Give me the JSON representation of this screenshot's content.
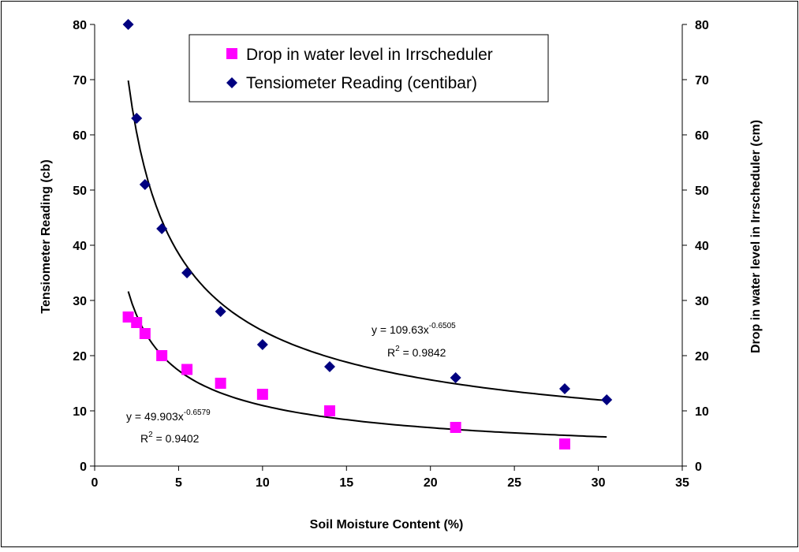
{
  "chart_data": {
    "type": "scatter",
    "xlabel": "Soil Moisture Content (%)",
    "ylabel_left": "Tensiometer Reading (cb)",
    "ylabel_right": "Drop in water level in Irrscheduler (cm)",
    "xlim": [
      0,
      35
    ],
    "ylim": [
      0,
      80
    ],
    "y2lim": [
      0,
      80
    ],
    "x_ticks": [
      0,
      5,
      10,
      15,
      20,
      25,
      30,
      35
    ],
    "y_ticks": [
      0,
      10,
      20,
      30,
      40,
      50,
      60,
      70,
      80
    ],
    "grid": false,
    "legend_position": "top-center",
    "series": [
      {
        "name": "Drop in water level in Irrscheduler",
        "marker": "square",
        "color": "#ff00ff",
        "x": [
          2,
          2.5,
          3,
          4,
          5.5,
          7.5,
          10,
          14,
          21.5,
          28
        ],
        "y": [
          27,
          26,
          24,
          20,
          17.5,
          15,
          13,
          10,
          7,
          4
        ]
      },
      {
        "name": "Tensiometer Reading (centibar)",
        "marker": "diamond",
        "color": "#000080",
        "x": [
          2,
          2.5,
          3,
          4,
          5.5,
          7.5,
          10,
          14,
          21.5,
          28,
          30.5
        ],
        "y": [
          80,
          63,
          51,
          43,
          35,
          28,
          22,
          18,
          16,
          14,
          12
        ]
      }
    ],
    "trendlines": [
      {
        "series": "Tensiometer Reading (centibar)",
        "type": "power",
        "a": 109.63,
        "b": -0.6505,
        "x_range": [
          2,
          30.5
        ],
        "equation_base": "y = 109.63x",
        "equation_exp": "-0.6505",
        "r2_prefix": "R",
        "r2_power": "2",
        "r2_value": " = 0.9842"
      },
      {
        "series": "Drop in water level in Irrscheduler",
        "type": "power",
        "a": 49.903,
        "b": -0.6579,
        "x_range": [
          2,
          30.5
        ],
        "equation_base": "y = 49.903x",
        "equation_exp": "-0.6579",
        "r2_prefix": "R",
        "r2_power": "2",
        "r2_value": " = 0.9402"
      }
    ]
  }
}
